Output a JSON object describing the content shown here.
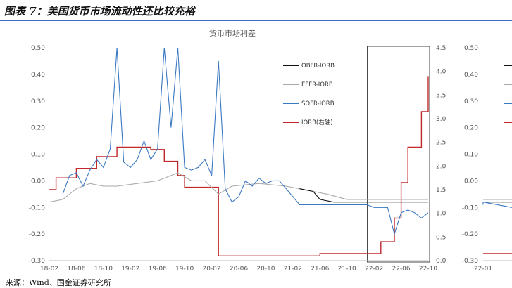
{
  "header": {
    "title": "图表 7：美国货币市场流动性还比较充裕"
  },
  "footer": {
    "source": "来源：Wind、国金证券研究所"
  },
  "colors": {
    "obfr": "#111111",
    "effr": "#aaaaaa",
    "sofr": "#3a78c2",
    "iorb": "#c0282b",
    "rule": "#3b6cc4",
    "highlight_box": "#444444"
  },
  "chart_data": [
    {
      "type": "line",
      "title": "货币市场利差",
      "y_left": {
        "ticks": [
          "0.50",
          "0.40",
          "0.30",
          "0.20",
          "0.10",
          "0.00",
          "-0.10",
          "-0.20",
          "-0.30"
        ],
        "ylim": [
          -0.3,
          0.5
        ]
      },
      "y_right": {
        "ticks": [
          "4.5",
          "4.0",
          "3.5",
          "3.0",
          "2.5",
          "2.0",
          "1.5",
          "1.0",
          "0.5",
          "0.0"
        ],
        "ylim": [
          0.0,
          4.5
        ]
      },
      "x_ticks": [
        "18-02",
        "18-06",
        "18-10",
        "19-02",
        "19-06",
        "19-10",
        "20-02",
        "20-06",
        "20-10",
        "21-02",
        "21-06",
        "21-10",
        "22-02",
        "22-06",
        "22-10"
      ],
      "x_range": [
        "2018-02",
        "2022-10"
      ],
      "legend": [
        "OBFR-IORB",
        "EFFR-IORB",
        "SOFR-IORB",
        "IORB(右轴)"
      ],
      "legend_position": "right",
      "highlight_window": [
        "2022-01",
        "2022-10"
      ],
      "series": [
        {
          "name": "IORB(右轴)",
          "axis": "right",
          "points": [
            [
              "2018-02",
              1.5
            ],
            [
              "2018-03",
              1.5
            ],
            [
              "2018-03",
              1.75
            ],
            [
              "2018-06",
              1.75
            ],
            [
              "2018-06",
              1.95
            ],
            [
              "2018-09",
              1.95
            ],
            [
              "2018-09",
              2.2
            ],
            [
              "2018-12",
              2.2
            ],
            [
              "2018-12",
              2.4
            ],
            [
              "2019-05",
              2.4
            ],
            [
              "2019-05",
              2.35
            ],
            [
              "2019-07",
              2.35
            ],
            [
              "2019-07",
              2.1
            ],
            [
              "2019-09",
              2.1
            ],
            [
              "2019-09",
              1.8
            ],
            [
              "2019-10",
              1.8
            ],
            [
              "2019-10",
              1.55
            ],
            [
              "2020-03",
              1.55
            ],
            [
              "2020-03",
              1.1
            ],
            [
              "2020-03",
              1.1
            ],
            [
              "2020-03",
              0.1
            ],
            [
              "2021-06",
              0.1
            ],
            [
              "2021-06",
              0.15
            ],
            [
              "2022-03",
              0.15
            ],
            [
              "2022-03",
              0.4
            ],
            [
              "2022-05",
              0.4
            ],
            [
              "2022-05",
              0.9
            ],
            [
              "2022-06",
              0.9
            ],
            [
              "2022-06",
              1.65
            ],
            [
              "2022-07",
              1.65
            ],
            [
              "2022-07",
              2.4
            ],
            [
              "2022-09",
              2.4
            ],
            [
              "2022-09",
              3.15
            ],
            [
              "2022-10",
              3.15
            ],
            [
              "2022-10",
              3.9
            ]
          ]
        },
        {
          "name": "OBFR-IORB",
          "axis": "left",
          "points": [
            [
              "2021-03",
              -0.03
            ],
            [
              "2021-05",
              -0.04
            ],
            [
              "2021-06",
              -0.07
            ],
            [
              "2021-08",
              -0.08
            ],
            [
              "2021-10",
              -0.08
            ],
            [
              "2022-01",
              -0.08
            ],
            [
              "2022-04",
              -0.08
            ],
            [
              "2022-07",
              -0.08
            ],
            [
              "2022-10",
              -0.08
            ]
          ]
        },
        {
          "name": "EFFR-IORB",
          "axis": "left",
          "points": [
            [
              "2018-02",
              -0.08
            ],
            [
              "2018-04",
              -0.07
            ],
            [
              "2018-06",
              -0.03
            ],
            [
              "2018-08",
              -0.01
            ],
            [
              "2018-10",
              -0.02
            ],
            [
              "2018-12",
              -0.02
            ],
            [
              "2019-03",
              -0.01
            ],
            [
              "2019-06",
              0.0
            ],
            [
              "2019-09",
              0.03
            ],
            [
              "2019-11",
              0.0
            ],
            [
              "2020-01",
              0.0
            ],
            [
              "2020-03",
              -0.05
            ],
            [
              "2020-05",
              -0.02
            ],
            [
              "2020-09",
              -0.01
            ],
            [
              "2021-01",
              -0.02
            ],
            [
              "2021-03",
              -0.03
            ],
            [
              "2021-05",
              -0.04
            ],
            [
              "2021-07",
              -0.05
            ],
            [
              "2021-10",
              -0.07
            ],
            [
              "2022-02",
              -0.07
            ],
            [
              "2022-06",
              -0.07
            ],
            [
              "2022-10",
              -0.07
            ]
          ]
        },
        {
          "name": "SOFR-IORB",
          "axis": "left",
          "points": [
            [
              "2018-04",
              -0.05
            ],
            [
              "2018-05",
              0.02
            ],
            [
              "2018-06",
              0.03
            ],
            [
              "2018-07",
              -0.02
            ],
            [
              "2018-08",
              0.04
            ],
            [
              "2018-09",
              0.08
            ],
            [
              "2018-10",
              0.05
            ],
            [
              "2018-11",
              0.12
            ],
            [
              "2018-12",
              0.5
            ],
            [
              "2019-01",
              0.07
            ],
            [
              "2019-02",
              0.05
            ],
            [
              "2019-03",
              0.08
            ],
            [
              "2019-04",
              0.15
            ],
            [
              "2019-05",
              0.08
            ],
            [
              "2019-06",
              0.12
            ],
            [
              "2019-07",
              0.5
            ],
            [
              "2019-08",
              0.2
            ],
            [
              "2019-09",
              0.5
            ],
            [
              "2019-10",
              0.05
            ],
            [
              "2019-11",
              0.04
            ],
            [
              "2019-12",
              0.05
            ],
            [
              "2020-01",
              0.08
            ],
            [
              "2020-02",
              0.02
            ],
            [
              "2020-03",
              0.45
            ],
            [
              "2020-04",
              -0.03
            ],
            [
              "2020-05",
              -0.08
            ],
            [
              "2020-06",
              -0.06
            ],
            [
              "2020-07",
              0.0
            ],
            [
              "2020-08",
              -0.02
            ],
            [
              "2020-09",
              0.01
            ],
            [
              "2020-10",
              -0.01
            ],
            [
              "2020-11",
              0.0
            ],
            [
              "2020-12",
              0.0
            ],
            [
              "2021-01",
              -0.03
            ],
            [
              "2021-02",
              -0.06
            ],
            [
              "2021-03",
              -0.09
            ],
            [
              "2021-04",
              -0.09
            ],
            [
              "2021-06",
              -0.09
            ],
            [
              "2021-09",
              -0.09
            ],
            [
              "2021-12",
              -0.09
            ],
            [
              "2022-01",
              -0.09
            ],
            [
              "2022-02",
              -0.1
            ],
            [
              "2022-04",
              -0.1
            ],
            [
              "2022-05",
              -0.2
            ],
            [
              "2022-06",
              -0.12
            ],
            [
              "2022-07",
              -0.11
            ],
            [
              "2022-08",
              -0.12
            ],
            [
              "2022-09",
              -0.14
            ],
            [
              "2022-10",
              -0.12
            ]
          ]
        }
      ]
    },
    {
      "type": "line",
      "title": "",
      "y_left": {
        "ticks": [
          "0.50",
          "0.40",
          "0.30",
          "0.20",
          "0.10",
          "0.00",
          "-0.10",
          "-0.20",
          "-0.30"
        ],
        "ylim": [
          -0.3,
          0.5
        ]
      },
      "x_ticks": [
        "22-01"
      ],
      "series": [
        {
          "name": "OBFR-IORB",
          "axis": "left",
          "points": [
            [
              "2022-01",
              -0.08
            ],
            [
              "2022-02",
              -0.08
            ]
          ]
        },
        {
          "name": "EFFR-IORB",
          "axis": "left",
          "points": [
            [
              "2022-01",
              -0.07
            ],
            [
              "2022-02",
              -0.07
            ]
          ]
        },
        {
          "name": "SOFR-IORB",
          "axis": "left",
          "points": [
            [
              "2022-01",
              -0.09
            ],
            [
              "2022-01",
              -0.08
            ],
            [
              "2022-02",
              -0.1
            ]
          ]
        },
        {
          "name": "IORB(右轴)",
          "axis": "right",
          "points": [
            [
              "2022-01",
              0.15
            ],
            [
              "2022-02",
              0.15
            ]
          ]
        }
      ]
    }
  ]
}
